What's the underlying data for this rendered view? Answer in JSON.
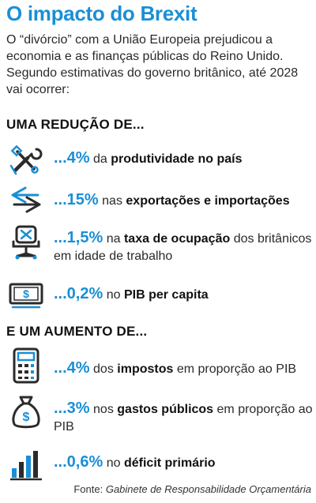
{
  "title": "O impacto do Brexit",
  "intro": "O “divórcio” com a União Europeia prejudicou a economia e as finanças públicas do Reino Unido. Segundo estimativas do governo britânico, até 2028 vai ocorrer:",
  "reduction": {
    "heading": "UMA REDUÇÃO DE...",
    "items": [
      {
        "icon": "tools-icon",
        "value": "...4%",
        "pre": "da",
        "bold": "produtividade no país",
        "post": ""
      },
      {
        "icon": "arrows-icon",
        "value": "...15%",
        "pre": "nas",
        "bold": "exportações e importações",
        "post": ""
      },
      {
        "icon": "office-chair-icon",
        "value": "...1,5%",
        "pre": "na",
        "bold": "taxa de ocupação",
        "post": "dos britânicos em idade de trabalho"
      },
      {
        "icon": "banknote-icon",
        "value": "...0,2%",
        "pre": "no",
        "bold": "PIB per capita",
        "post": ""
      }
    ]
  },
  "increase": {
    "heading": "E UM AUMENTO DE...",
    "items": [
      {
        "icon": "calculator-icon",
        "value": "...4%",
        "pre": "dos",
        "bold": "impostos",
        "post": "em proporção ao PIB"
      },
      {
        "icon": "money-bag-icon",
        "value": "...3%",
        "pre": "nos",
        "bold": "gastos públicos",
        "post": "em proporção ao PIB"
      },
      {
        "icon": "bar-chart-icon",
        "value": "...0,6%",
        "pre": "no",
        "bold": "déficit primário",
        "post": ""
      }
    ]
  },
  "source": {
    "label": "Fonte:",
    "text": "Gabinete de Responsabilidade Orçamentária"
  },
  "colors": {
    "accent": "#1a8fd6",
    "text": "#1b1b1b",
    "icon": "#2b2b2b"
  }
}
